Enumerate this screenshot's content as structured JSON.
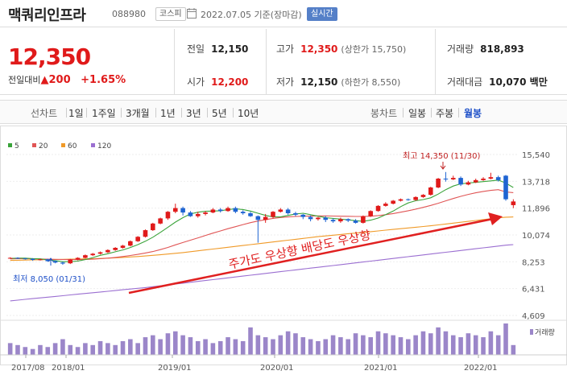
{
  "header": {
    "name": "맥쿼리인프라",
    "code": "088980",
    "market": "코스피",
    "date": "2022.07.05 기준(장마감)",
    "realtime": "실시간"
  },
  "price": {
    "current": "12,350",
    "change_label": "전일대비",
    "change_arrow": "▲",
    "change": "200",
    "change_pct": "+1.65%"
  },
  "stats": {
    "prev_close_label": "전일",
    "prev_close": "12,150",
    "open_label": "시가",
    "open": "12,200",
    "high_label": "고가",
    "high": "12,350",
    "upper_limit": "(상한가 15,750)",
    "low_label": "저가",
    "low": "12,150",
    "lower_limit": "(하한가 8,550)",
    "volume_label": "거래량",
    "volume": "818,893",
    "amount_label": "거래대금",
    "amount": "10,070 백만"
  },
  "tabs": {
    "line_label": "선차트",
    "line": [
      "1일",
      "1주일",
      "3개월",
      "1년",
      "3년",
      "5년",
      "10년"
    ],
    "candle_label": "봉차트",
    "candle": [
      "일봉",
      "주봉",
      "월봉"
    ],
    "active_candle": "월봉"
  },
  "colors": {
    "up": "#e01a1a",
    "down": "#1e64d2",
    "ma5": "#39a339",
    "ma20": "#e05555",
    "ma60": "#f09a28",
    "ma120": "#9b6fd1",
    "volume": "#9b86c9",
    "annotation": "#e02020"
  },
  "chart_data": {
    "type": "candlestick",
    "legend": [
      "5",
      "20",
      "60",
      "120"
    ],
    "y_ticks": [
      "15,540",
      "13,718",
      "11,896",
      "10,074",
      "8,253",
      "6,431",
      "4,609"
    ],
    "ylim": [
      4609,
      15540
    ],
    "x_ticks": [
      "2017/08",
      "2018/01",
      "2019/01",
      "2020/01",
      "2021/01",
      "2022/01"
    ],
    "volume_label": "거래량",
    "high_label": "최고 14,350 (11/30)",
    "low_label": "최저 8,050 (01/31)",
    "annotation": "주가도 우상향 배당도 우상향",
    "candles": [
      {
        "o": 8500,
        "c": 8520,
        "h": 8560,
        "l": 8460
      },
      {
        "o": 8520,
        "c": 8480,
        "h": 8560,
        "l": 8440
      },
      {
        "o": 8480,
        "c": 8450,
        "h": 8520,
        "l": 8400
      },
      {
        "o": 8450,
        "c": 8380,
        "h": 8500,
        "l": 8320
      },
      {
        "o": 8380,
        "c": 8420,
        "h": 8460,
        "l": 8340
      },
      {
        "o": 8420,
        "c": 8300,
        "h": 8460,
        "l": 8250
      },
      {
        "o": 8300,
        "c": 8200,
        "h": 8350,
        "l": 8150
      },
      {
        "o": 8200,
        "c": 8130,
        "h": 8260,
        "l": 8050
      },
      {
        "o": 8150,
        "c": 8400,
        "h": 8450,
        "l": 8100
      },
      {
        "o": 8400,
        "c": 8520,
        "h": 8560,
        "l": 8350
      },
      {
        "o": 8520,
        "c": 8700,
        "h": 8750,
        "l": 8480
      },
      {
        "o": 8700,
        "c": 8800,
        "h": 8850,
        "l": 8650
      },
      {
        "o": 8800,
        "c": 8900,
        "h": 8950,
        "l": 8750
      },
      {
        "o": 8900,
        "c": 9050,
        "h": 9100,
        "l": 8850
      },
      {
        "o": 9050,
        "c": 9200,
        "h": 9250,
        "l": 9000
      },
      {
        "o": 9200,
        "c": 9350,
        "h": 9400,
        "l": 9150
      },
      {
        "o": 9350,
        "c": 9650,
        "h": 9700,
        "l": 9300
      },
      {
        "o": 9650,
        "c": 9950,
        "h": 10000,
        "l": 9600
      },
      {
        "o": 9950,
        "c": 10400,
        "h": 10450,
        "l": 9900
      },
      {
        "o": 10400,
        "c": 10850,
        "h": 10900,
        "l": 10350
      },
      {
        "o": 10850,
        "c": 11200,
        "h": 11250,
        "l": 10800
      },
      {
        "o": 11200,
        "c": 11650,
        "h": 11700,
        "l": 11100
      },
      {
        "o": 11650,
        "c": 11900,
        "h": 12200,
        "l": 11550
      },
      {
        "o": 11900,
        "c": 11600,
        "h": 12000,
        "l": 11400
      },
      {
        "o": 11600,
        "c": 11350,
        "h": 11700,
        "l": 11300
      },
      {
        "o": 11350,
        "c": 11500,
        "h": 11650,
        "l": 11250
      },
      {
        "o": 11500,
        "c": 11600,
        "h": 11700,
        "l": 11400
      },
      {
        "o": 11600,
        "c": 11800,
        "h": 11900,
        "l": 11550
      },
      {
        "o": 11800,
        "c": 11700,
        "h": 11900,
        "l": 11600
      },
      {
        "o": 11700,
        "c": 11900,
        "h": 12000,
        "l": 11650
      },
      {
        "o": 11900,
        "c": 11650,
        "h": 12000,
        "l": 11550
      },
      {
        "o": 11650,
        "c": 11550,
        "h": 11750,
        "l": 11450
      },
      {
        "o": 11550,
        "c": 11350,
        "h": 11650,
        "l": 11300
      },
      {
        "o": 11350,
        "c": 11100,
        "h": 11400,
        "l": 9550
      },
      {
        "o": 11100,
        "c": 11300,
        "h": 11500,
        "l": 10900
      },
      {
        "o": 11300,
        "c": 11650,
        "h": 11700,
        "l": 11200
      },
      {
        "o": 11650,
        "c": 11800,
        "h": 11900,
        "l": 11600
      },
      {
        "o": 11800,
        "c": 11550,
        "h": 11900,
        "l": 11450
      },
      {
        "o": 11550,
        "c": 11450,
        "h": 11650,
        "l": 11350
      },
      {
        "o": 11450,
        "c": 11300,
        "h": 11500,
        "l": 11150
      },
      {
        "o": 11300,
        "c": 11150,
        "h": 11400,
        "l": 11000
      },
      {
        "o": 11150,
        "c": 11250,
        "h": 11300,
        "l": 11050
      },
      {
        "o": 11250,
        "c": 11100,
        "h": 11350,
        "l": 10950
      },
      {
        "o": 11100,
        "c": 11000,
        "h": 11200,
        "l": 10900
      },
      {
        "o": 11000,
        "c": 11150,
        "h": 11250,
        "l": 10900
      },
      {
        "o": 11150,
        "c": 11050,
        "h": 11200,
        "l": 10950
      },
      {
        "o": 11050,
        "c": 10900,
        "h": 11150,
        "l": 10850
      },
      {
        "o": 10900,
        "c": 11350,
        "h": 11400,
        "l": 10850
      },
      {
        "o": 11350,
        "c": 11700,
        "h": 11750,
        "l": 11300
      },
      {
        "o": 11700,
        "c": 12050,
        "h": 12100,
        "l": 11650
      },
      {
        "o": 12050,
        "c": 12200,
        "h": 12300,
        "l": 12000
      },
      {
        "o": 12200,
        "c": 12400,
        "h": 12450,
        "l": 12150
      },
      {
        "o": 12400,
        "c": 12500,
        "h": 12550,
        "l": 12350
      },
      {
        "o": 12500,
        "c": 12450,
        "h": 12550,
        "l": 12400
      },
      {
        "o": 12450,
        "c": 12650,
        "h": 12700,
        "l": 12400
      },
      {
        "o": 12650,
        "c": 12800,
        "h": 12850,
        "l": 12600
      },
      {
        "o": 12800,
        "c": 13300,
        "h": 13350,
        "l": 12750
      },
      {
        "o": 13300,
        "c": 13900,
        "h": 13950,
        "l": 13250
      },
      {
        "o": 13900,
        "c": 13850,
        "h": 14350,
        "l": 13700
      },
      {
        "o": 13850,
        "c": 13950,
        "h": 14100,
        "l": 13800
      },
      {
        "o": 13950,
        "c": 13500,
        "h": 14050,
        "l": 13400
      },
      {
        "o": 13500,
        "c": 13650,
        "h": 13750,
        "l": 13450
      },
      {
        "o": 13650,
        "c": 13800,
        "h": 13900,
        "l": 13600
      },
      {
        "o": 13800,
        "c": 13900,
        "h": 14000,
        "l": 13750
      },
      {
        "o": 13900,
        "c": 14000,
        "h": 14300,
        "l": 13850
      },
      {
        "o": 14000,
        "c": 13800,
        "h": 14100,
        "l": 13700
      },
      {
        "o": 14100,
        "c": 12500,
        "h": 14150,
        "l": 12400
      },
      {
        "o": 12100,
        "c": 12350,
        "h": 12500,
        "l": 11900
      }
    ],
    "volumes": [
      6,
      5,
      4,
      3,
      5,
      4,
      6,
      8,
      5,
      4,
      6,
      5,
      7,
      6,
      5,
      7,
      8,
      6,
      9,
      10,
      8,
      11,
      12,
      10,
      9,
      7,
      8,
      6,
      7,
      9,
      8,
      7,
      14,
      10,
      9,
      8,
      10,
      12,
      11,
      9,
      8,
      7,
      8,
      10,
      9,
      8,
      11,
      10,
      9,
      12,
      11,
      10,
      9,
      8,
      10,
      12,
      11,
      14,
      12,
      10,
      9,
      11,
      10,
      9,
      12,
      10,
      16,
      5
    ],
    "ma5": [
      8480,
      8500,
      8500,
      8470,
      8450,
      8380,
      8330,
      8260,
      8260,
      8300,
      8400,
      8540,
      8690,
      8800,
      8930,
      9060,
      9220,
      9420,
      9650,
      9920,
      10250,
      10600,
      10950,
      11250,
      11500,
      11620,
      11680,
      11700,
      11720,
      11800,
      11850,
      11800,
      11700,
      11550,
      11400,
      11300,
      11300,
      11400,
      11500,
      11550,
      11450,
      11350,
      11250,
      11200,
      11150,
      11100,
      11050,
      11000,
      11080,
      11220,
      11450,
      11700,
      12000,
      12250,
      12400,
      12480,
      12600,
      12850,
      13150,
      13400,
      13550,
      13600,
      13650,
      13700,
      13750,
      13800,
      13600,
      13300
    ],
    "ma20": [
      8450,
      8460,
      8460,
      8450,
      8440,
      8430,
      8420,
      8410,
      8400,
      8400,
      8410,
      8430,
      8460,
      8500,
      8550,
      8610,
      8680,
      8760,
      8850,
      8950,
      9080,
      9230,
      9400,
      9560,
      9720,
      9880,
      10040,
      10200,
      10350,
      10500,
      10640,
      10780,
      10910,
      11020,
      11120,
      11200,
      11260,
      11300,
      11330,
      11350,
      11360,
      11370,
      11370,
      11360,
      11350,
      11340,
      11330,
      11330,
      11350,
      11390,
      11450,
      11530,
      11620,
      11720,
      11830,
      11950,
      12080,
      12230,
      12390,
      12550,
      12700,
      12830,
      12940,
      13030,
      13100,
      13150,
      13000,
      12950
    ],
    "ma60": [
      8350,
      8360,
      8370,
      8380,
      8390,
      8400,
      8410,
      8420,
      8430,
      8440,
      8450,
      8460,
      8480,
      8500,
      8520,
      8550,
      8580,
      8610,
      8650,
      8690,
      8730,
      8780,
      8830,
      8880,
      8940,
      9000,
      9060,
      9120,
      9180,
      9240,
      9300,
      9360,
      9420,
      9480,
      9540,
      9600,
      9660,
      9720,
      9780,
      9840,
      9900,
      9960,
      10010,
      10060,
      10110,
      10160,
      10200,
      10250,
      10300,
      10350,
      10400,
      10450,
      10500,
      10550,
      10600,
      10650,
      10700,
      10760,
      10820,
      10880,
      10940,
      11000,
      11060,
      11120,
      11180,
      11240,
      11280,
      11300
    ],
    "ma120": [
      5600,
      5650,
      5700,
      5750,
      5800,
      5850,
      5900,
      5950,
      6000,
      6050,
      6100,
      6150,
      6200,
      6250,
      6300,
      6350,
      6400,
      6450,
      6500,
      6560,
      6620,
      6680,
      6740,
      6800,
      6860,
      6920,
      6980,
      7040,
      7100,
      7160,
      7220,
      7280,
      7340,
      7400,
      7460,
      7520,
      7580,
      7640,
      7700,
      7760,
      7820,
      7880,
      7940,
      8000,
      8060,
      8120,
      8180,
      8240,
      8300,
      8360,
      8420,
      8480,
      8540,
      8600,
      8660,
      8720,
      8780,
      8840,
      8900,
      8960,
      9020,
      9080,
      9140,
      9200,
      9260,
      9320,
      9380,
      9420
    ]
  }
}
